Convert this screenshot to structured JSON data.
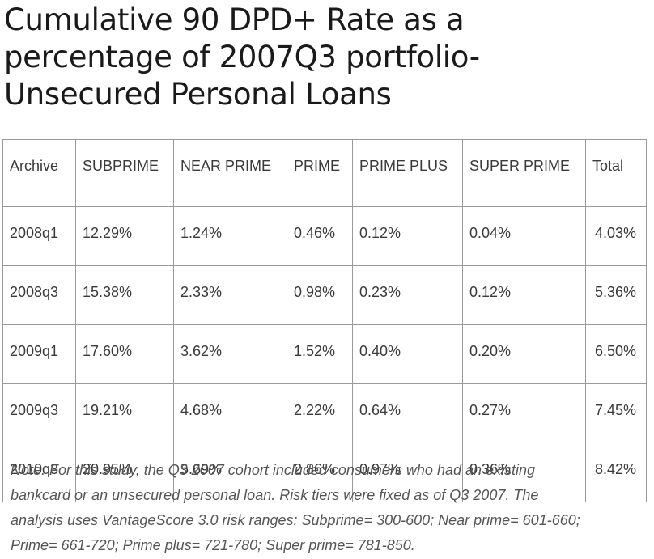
{
  "title": {
    "lines": [
      "Cumulative 90 DPD+ Rate as a",
      "percentage of 2007Q3 portfolio-",
      "Unsecured Personal Loans"
    ]
  },
  "table": {
    "headers": [
      "Archive",
      "SUBPRIME",
      "NEAR PRIME",
      "PRIME",
      "PRIME PLUS",
      "SUPER PRIME",
      "Total"
    ],
    "rows": [
      [
        "2008q1",
        "12.29%",
        "1.24%",
        "0.46%",
        "0.12%",
        "0.04%",
        "4.03%"
      ],
      [
        "2008q3",
        "15.38%",
        "2.33%",
        "0.98%",
        "0.23%",
        "0.12%",
        "5.36%"
      ],
      [
        "2009q1",
        "17.60%",
        "3.62%",
        "1.52%",
        "0.40%",
        "0.20%",
        "6.50%"
      ],
      [
        "2009q3",
        "19.21%",
        "4.68%",
        "2.22%",
        "0.64%",
        "0.27%",
        "7.45%"
      ],
      [
        "2010q3",
        "20.95%",
        "5.69%",
        "2.86%",
        "0.97%",
        "0.36%",
        "8.42%"
      ]
    ]
  },
  "note": {
    "lines": [
      "Note: For this study, the Q3 2007 cohort included consumers who had an existing",
      "bankcard or an unsecured personal loan. Risk tiers were fixed as of Q3 2007. The",
      "analysis uses VantageScore 3.0 risk ranges: Subprime= 300-600; Near prime= 601-660;",
      "Prime= 661-720; Prime plus= 721-780; Super prime= 781-850."
    ]
  }
}
